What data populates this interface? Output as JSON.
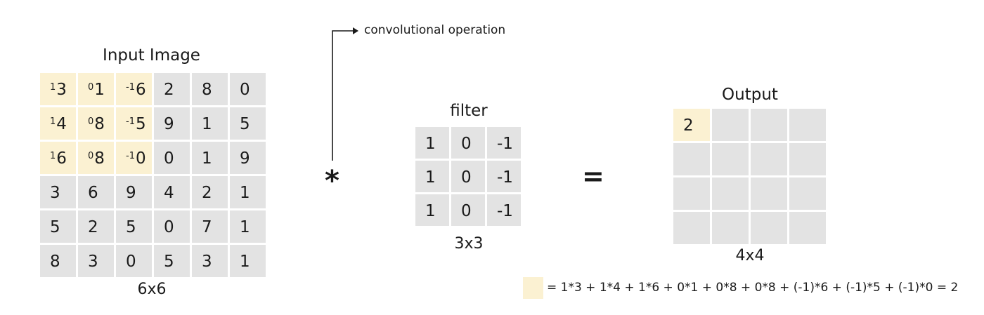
{
  "input": {
    "title": "Input Image",
    "size_label": "6x6",
    "rows": [
      [
        {
          "w": "1",
          "v": "3"
        },
        {
          "w": "0",
          "v": "1"
        },
        {
          "w": "-1",
          "v": "6"
        },
        {
          "v": "2"
        },
        {
          "v": "8"
        },
        {
          "v": "0"
        }
      ],
      [
        {
          "w": "1",
          "v": "4"
        },
        {
          "w": "0",
          "v": "8"
        },
        {
          "w": "-1",
          "v": "5"
        },
        {
          "v": "9"
        },
        {
          "v": "1"
        },
        {
          "v": "5"
        }
      ],
      [
        {
          "w": "1",
          "v": "6"
        },
        {
          "w": "0",
          "v": "8"
        },
        {
          "w": "-1",
          "v": "0"
        },
        {
          "v": "0"
        },
        {
          "v": "1"
        },
        {
          "v": "9"
        }
      ],
      [
        {
          "v": "3"
        },
        {
          "v": "6"
        },
        {
          "v": "9"
        },
        {
          "v": "4"
        },
        {
          "v": "2"
        },
        {
          "v": "1"
        }
      ],
      [
        {
          "v": "5"
        },
        {
          "v": "2"
        },
        {
          "v": "5"
        },
        {
          "v": "0"
        },
        {
          "v": "7"
        },
        {
          "v": "1"
        }
      ],
      [
        {
          "v": "8"
        },
        {
          "v": "3"
        },
        {
          "v": "0"
        },
        {
          "v": "5"
        },
        {
          "v": "3"
        },
        {
          "v": "1"
        }
      ]
    ]
  },
  "operator": {
    "symbol": "*",
    "label": "convolutional operation"
  },
  "filter": {
    "title": "filter",
    "size_label": "3x3",
    "rows": [
      [
        "1",
        "0",
        "-1"
      ],
      [
        "1",
        "0",
        "-1"
      ],
      [
        "1",
        "0",
        "-1"
      ]
    ]
  },
  "equals_symbol": "=",
  "output": {
    "title": "Output",
    "size_label": "4x4",
    "rows": [
      [
        "2",
        "",
        "",
        ""
      ],
      [
        "",
        "",
        "",
        ""
      ],
      [
        "",
        "",
        "",
        ""
      ],
      [
        "",
        "",
        "",
        ""
      ]
    ]
  },
  "formula": "= 1*3 + 1*4 + 1*6 + 0*1 + 0*8 + 0*8 + (-1)*6 + (-1)*5 + (-1)*0 = 2",
  "colors": {
    "cell": "#e3e3e3",
    "highlight": "#fbf1d2",
    "text": "#1a1a1a"
  }
}
